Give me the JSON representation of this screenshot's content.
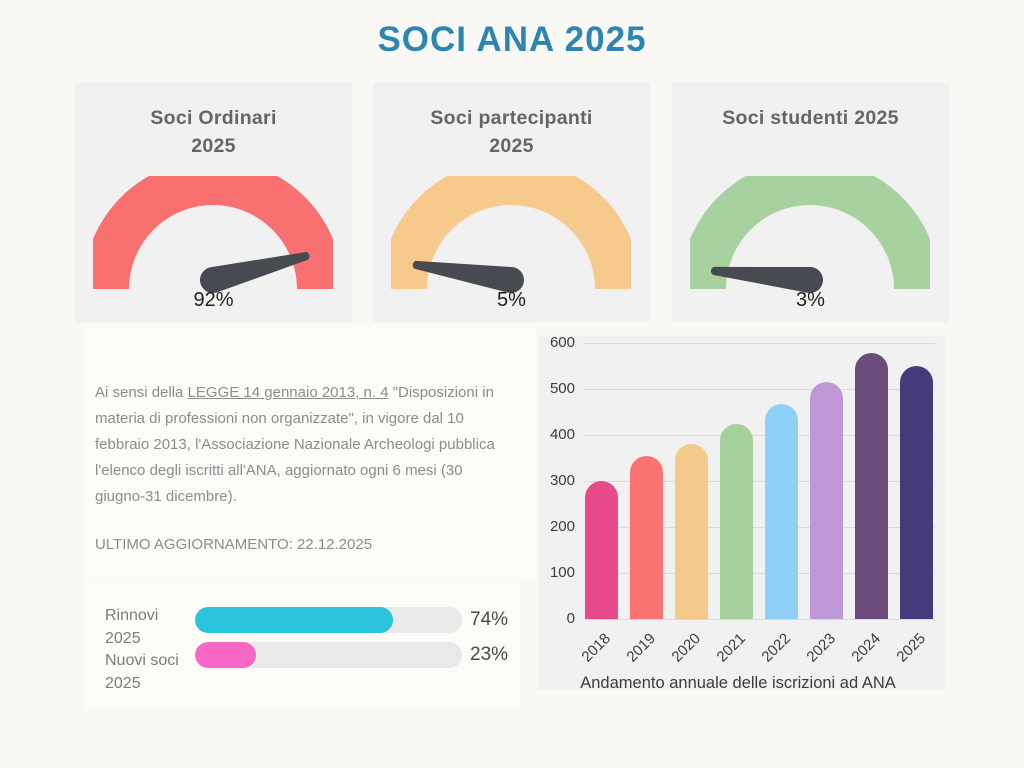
{
  "title": "SOCI ANA 2025",
  "theme": {
    "title_color": "#2E86B0",
    "needle_color": "#474A51",
    "track_color": "#E9E9E9"
  },
  "gauges": [
    {
      "heading": "Soci Ordinari\n2025",
      "value": 92,
      "label": "92%",
      "color": "#F97070"
    },
    {
      "heading": "Soci partecipanti\n2025",
      "value": 5,
      "label": "5%",
      "color": "#F7C98C"
    },
    {
      "heading": "Soci studenti 2025",
      "value": 3,
      "label": "3%",
      "color": "#A7D19E"
    }
  ],
  "info": {
    "para_before": "Ai sensi della ",
    "law_link": "LEGGE 14 gennaio 2013, n. 4",
    "para_after": " \"Disposizioni in materia di professioni non organizzate\", in vigore dal 10 febbraio 2013, l'Associazione Nazionale Archeologi pubblica l'elenco degli iscritti all'ANA, aggiornato ogni 6 mesi (30 giugno-31 dicembre).",
    "last_update": "ULTIMO AGGIORNAMENTO: 22.12.2025"
  },
  "progress": [
    {
      "label": "Rinnovi\n2025",
      "value": 74,
      "pct_label": "74%",
      "color": "#2BC2DD"
    },
    {
      "label": "Nuovi soci\n2025",
      "value": 23,
      "pct_label": "23%",
      "color": "#F867C4"
    }
  ],
  "chart_data": {
    "type": "bar",
    "title": "Andamento annuale delle iscrizioni ad ANA",
    "categories": [
      "2018",
      "2019",
      "2020",
      "2021",
      "2022",
      "2023",
      "2024",
      "2025"
    ],
    "values": [
      300,
      355,
      380,
      425,
      468,
      515,
      578,
      550
    ],
    "colors": [
      "#E8498B",
      "#F97373",
      "#F5C98A",
      "#A5CF9B",
      "#8FD1F6",
      "#BD97D6",
      "#6A4B7B",
      "#453B7C"
    ],
    "xlabel": "",
    "ylabel": "",
    "ylim": [
      0,
      600
    ],
    "yticks": [
      0,
      100,
      200,
      300,
      400,
      500,
      600
    ],
    "grid": true,
    "legend_position": "none"
  }
}
